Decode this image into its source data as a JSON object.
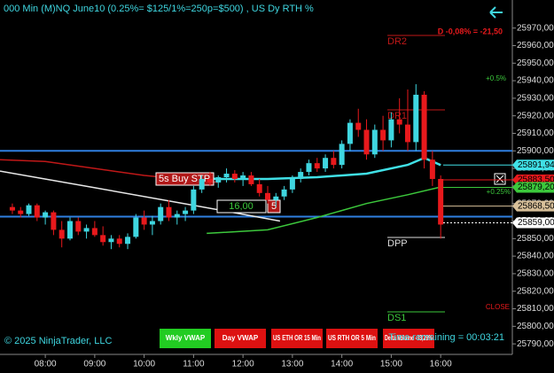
{
  "chart_data": {
    "type": "candlestick",
    "title": "000 Min (M)NQ June10 (0.25%= $125/1%=250p=$500) , US Dy RTH %",
    "x": [
      "07:20",
      "07:30",
      "07:40",
      "07:50",
      "08:00",
      "08:10",
      "08:20",
      "08:30",
      "08:40",
      "08:50",
      "09:00",
      "09:10",
      "09:20",
      "09:30",
      "09:40",
      "09:50",
      "10:00",
      "10:10",
      "10:20",
      "10:30",
      "10:40",
      "10:50",
      "11:00",
      "11:10",
      "11:20",
      "11:30",
      "11:40",
      "11:50",
      "12:00",
      "12:10",
      "12:20",
      "12:30",
      "12:40",
      "12:50",
      "13:00",
      "13:10",
      "13:20",
      "13:30",
      "13:40",
      "13:50",
      "14:00",
      "14:10",
      "14:20",
      "14:30",
      "14:40",
      "14:50",
      "15:00",
      "15:10",
      "15:20",
      "15:30",
      "15:40",
      "15:50",
      "16:00"
    ],
    "open": [
      25868,
      25866,
      25864,
      25869,
      25862,
      25865,
      25855,
      25850,
      25860,
      25854,
      25856,
      25852,
      25848,
      25850,
      25847,
      25851,
      25862,
      25858,
      25860,
      25868,
      25862,
      25864,
      25866,
      25878,
      25884,
      25882,
      25885,
      25887,
      25884,
      25886,
      25881,
      25876,
      25872,
      25874,
      25878,
      25884,
      25888,
      25893,
      25890,
      25896,
      25892,
      25904,
      25916,
      25912,
      25898,
      25912,
      25906,
      25918,
      25915,
      25905,
      25932,
      25895,
      25884
    ],
    "high": [
      25870,
      25868,
      25870,
      25870,
      25866,
      25866,
      25860,
      25862,
      25862,
      25858,
      25860,
      25857,
      25852,
      25852,
      25853,
      25864,
      25866,
      25863,
      25870,
      25872,
      25866,
      25868,
      25880,
      25886,
      25888,
      25886,
      25890,
      25889,
      25888,
      25888,
      25884,
      25880,
      25876,
      25880,
      25886,
      25890,
      25895,
      25896,
      25898,
      25900,
      25906,
      25918,
      25924,
      25918,
      25915,
      25920,
      25922,
      25930,
      25935,
      25938,
      25934,
      25900,
      25886
    ],
    "low": [
      25864,
      25862,
      25863,
      25860,
      25858,
      25852,
      25845,
      25849,
      25852,
      25850,
      25851,
      25846,
      25844,
      25845,
      25844,
      25850,
      25855,
      25852,
      25858,
      25860,
      25858,
      25860,
      25864,
      25876,
      25880,
      25879,
      25882,
      25882,
      25880,
      25880,
      25874,
      25870,
      25868,
      25872,
      25876,
      25882,
      25886,
      25888,
      25888,
      25890,
      25890,
      25900,
      25908,
      25895,
      25896,
      25900,
      25902,
      25910,
      25900,
      25900,
      25890,
      25880,
      25850
    ],
    "close": [
      25866,
      25864,
      25869,
      25862,
      25865,
      25855,
      25850,
      25860,
      25854,
      25856,
      25852,
      25848,
      25850,
      25847,
      25851,
      25862,
      25858,
      25860,
      25868,
      25862,
      25864,
      25866,
      25878,
      25884,
      25882,
      25885,
      25887,
      25884,
      25886,
      25881,
      25876,
      25872,
      25874,
      25878,
      25884,
      25888,
      25893,
      25890,
      25896,
      25892,
      25904,
      25916,
      25912,
      25898,
      25912,
      25906,
      25918,
      25915,
      25905,
      25932,
      25895,
      25884,
      25858
    ],
    "up_color": "#3fd6e0",
    "down_color": "#e8191c",
    "xlim": [
      "07:05",
      "17:27"
    ],
    "xticks": [
      "08:00",
      "09:00",
      "10:00",
      "11:00",
      "12:00",
      "13:00",
      "14:00",
      "15:00",
      "16:00"
    ],
    "ylim": [
      25784,
      25986
    ],
    "yticks": [
      {
        "value": 25790,
        "label": "25790,00"
      },
      {
        "value": 25800,
        "label": "25800,00"
      },
      {
        "value": 25810,
        "label": "25810,00"
      },
      {
        "value": 25820,
        "label": "25820,00"
      },
      {
        "value": 25830,
        "label": "25830,00"
      },
      {
        "value": 25840,
        "label": "25840,00"
      },
      {
        "value": 25850,
        "label": "25850,00"
      },
      {
        "value": 25860,
        "label": "25860,00"
      },
      {
        "value": 25870,
        "label": "25870,00"
      },
      {
        "value": 25880,
        "label": "25880,00"
      },
      {
        "value": 25890,
        "label": "25890,00"
      },
      {
        "value": 25900,
        "label": "25900,00"
      },
      {
        "value": 25910,
        "label": "25910,00"
      },
      {
        "value": 25920,
        "label": "25920,00"
      },
      {
        "value": 25930,
        "label": "25930,00"
      },
      {
        "value": 25940,
        "label": "25940,00"
      },
      {
        "value": 25950,
        "label": "25950,00"
      },
      {
        "value": 25960,
        "label": "25960,00"
      },
      {
        "value": 25970,
        "label": "25970,00"
      }
    ],
    "indicators": [
      {
        "color": "#c01818",
        "x": [
          "07:05",
          "08:00",
          "09:00",
          "10:00",
          "10:45",
          "11:30"
        ],
        "values": [
          25895,
          25894,
          25890,
          25886,
          25884,
          25882
        ]
      },
      {
        "color": "#e8e8e8",
        "x": [
          "07:05",
          "09:00",
          "11:00",
          "12:45"
        ],
        "values": [
          25888.5,
          25879,
          25869,
          25860
        ]
      },
      {
        "color": "#40e0e6",
        "x": [
          "10:20",
          "11:30",
          "12:30",
          "13:30",
          "14:30",
          "15:20",
          "15:40",
          "16:00"
        ],
        "values": [
          25886,
          25884,
          25884,
          25885,
          25887,
          25892,
          25896,
          25891.94
        ]
      },
      {
        "color": "#3cc83c",
        "x": [
          "11:16",
          "12:30",
          "13:30",
          "14:30",
          "15:20",
          "15:58"
        ],
        "values": [
          25853,
          25855,
          25862,
          25870,
          25875,
          25879.2
        ]
      }
    ],
    "hlines": [
      {
        "color": "#2f7fe0",
        "value": 25900
      },
      {
        "color": "#2f7fe0",
        "value": 25862.5
      }
    ],
    "price_labels": [
      {
        "value": 25891.94,
        "label": "25891,94",
        "color": "#40e0e6"
      },
      {
        "value": 25883.5,
        "label": "25883,50",
        "color": "#e8191c"
      },
      {
        "value": 25879.2,
        "label": "25879,20",
        "color": "#3cc83c"
      },
      {
        "value": 25868.5,
        "label": "25868,50",
        "color": "#d8c09a"
      },
      {
        "value": 25859,
        "label": "25859,00",
        "color": "#ffffff"
      }
    ],
    "annotations": {
      "daily_change": "D -0,08% = -21,50",
      "dr2": "DR2",
      "dr1": "DR1",
      "dpp": "DPP",
      "ds1": "DS1",
      "plus_half": "+0.5%",
      "plus_quarter": "+0.25%",
      "close": "CLOSE",
      "order": "5s Buy STP",
      "order_price": "16,00",
      "order_qty": "5",
      "copyright": "© 2025 NinjaTrader, LLC",
      "time_remaining": "Time remaining = 00:03:21"
    },
    "buttons": [
      "Wkly VWAP",
      "Day VWAP",
      "US ETH OR 15 Min",
      "US RTH OR 5 Min",
      "Delta Volume -33,29%"
    ]
  }
}
